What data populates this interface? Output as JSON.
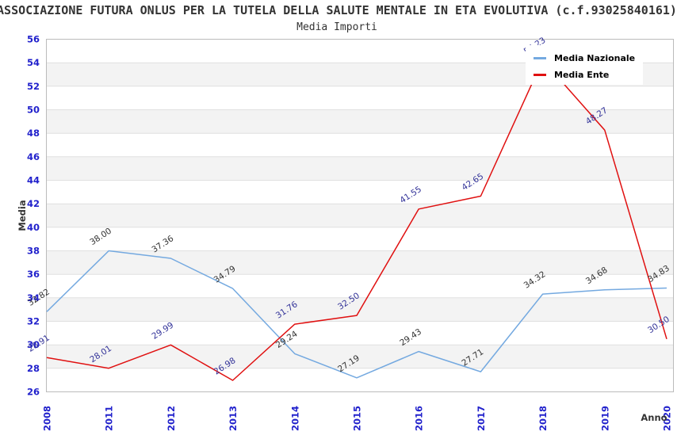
{
  "title": "ASSOCIAZIONE FUTURA ONLUS PER LA TUTELA DELLA SALUTE MENTALE IN ETA EVOLUTIVA (c.f.93025840161)",
  "subtitle": "Media Importi",
  "legend": {
    "items": [
      {
        "label": "Media Nazionale",
        "color": "#74a9e0"
      },
      {
        "label": "Media Ente",
        "color": "#e01010"
      }
    ]
  },
  "chart_data": {
    "type": "line",
    "title": "Media Importi",
    "xlabel": "Anno",
    "ylabel": "Media",
    "ylim": [
      26,
      56
    ],
    "ytick_step": 2,
    "grid": true,
    "alternating_bands": true,
    "legend_position": "top-right",
    "categories": [
      "2008",
      "2011",
      "2012",
      "2013",
      "2014",
      "2015",
      "2016",
      "2017",
      "2018",
      "2019",
      "2020"
    ],
    "series": [
      {
        "name": "Media Nazionale",
        "color": "#74a9e0",
        "label_color": "#333333",
        "values": [
          32.82,
          38.0,
          37.36,
          34.79,
          29.24,
          27.19,
          29.43,
          27.71,
          34.32,
          34.68,
          34.83
        ]
      },
      {
        "name": "Media Ente",
        "color": "#e01010",
        "label_color": "#333399",
        "values": [
          28.91,
          28.01,
          29.99,
          26.98,
          31.76,
          32.5,
          41.55,
          42.65,
          54.23,
          48.27,
          30.5
        ]
      }
    ],
    "colors": {
      "tick_label": "#2222cc",
      "band_fill": "#f3f3f3",
      "gridline": "#e0e0e0",
      "plot_border": "#bbbbbb",
      "axis_title": "#333333"
    }
  }
}
